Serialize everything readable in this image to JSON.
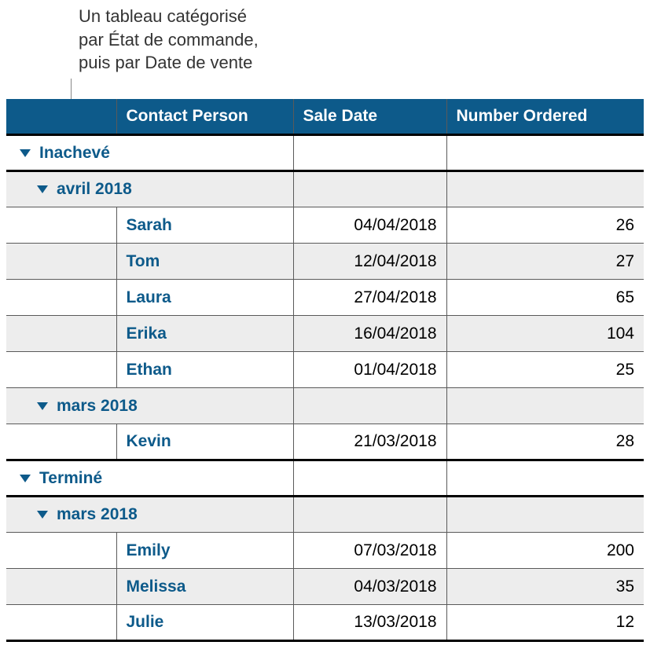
{
  "colors": {
    "header_bg": "#0d5a8a",
    "header_fg": "#ffffff",
    "link_fg": "#0d5a8a",
    "row_alt_bg": "#ededed",
    "row_bg": "#ffffff",
    "grid_line": "#5a5a5a",
    "thick_line": "#000000",
    "annotation_line": "#888888",
    "annotation_fg": "#333333"
  },
  "annotation": {
    "line1": "Un tableau catégorisé",
    "line2": "par État de commande,",
    "line3": "puis par Date de vente"
  },
  "columns": {
    "contact": "Contact Person",
    "date": "Sale Date",
    "number": "Number Ordered"
  },
  "groups": [
    {
      "label": "Inachevé",
      "subgroups": [
        {
          "label": "avril 2018",
          "rows": [
            {
              "contact": "Sarah",
              "date": "04/04/2018",
              "number": "26"
            },
            {
              "contact": "Tom",
              "date": "12/04/2018",
              "number": "27"
            },
            {
              "contact": "Laura",
              "date": "27/04/2018",
              "number": "65"
            },
            {
              "contact": "Erika",
              "date": "16/04/2018",
              "number": "104"
            },
            {
              "contact": "Ethan",
              "date": "01/04/2018",
              "number": "25"
            }
          ]
        },
        {
          "label": "mars 2018",
          "rows": [
            {
              "contact": "Kevin",
              "date": "21/03/2018",
              "number": "28"
            }
          ]
        }
      ]
    },
    {
      "label": "Terminé",
      "subgroups": [
        {
          "label": "mars 2018",
          "rows": [
            {
              "contact": "Emily",
              "date": "07/03/2018",
              "number": "200"
            },
            {
              "contact": "Melissa",
              "date": "04/03/2018",
              "number": "35"
            },
            {
              "contact": "Julie",
              "date": "13/03/2018",
              "number": "12"
            }
          ]
        }
      ]
    }
  ]
}
